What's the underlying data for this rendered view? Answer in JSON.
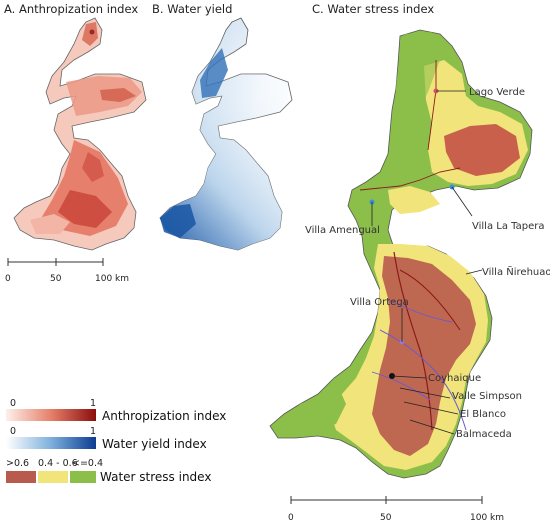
{
  "panels": {
    "a_title": "A. Anthropization index",
    "b_title": "B. Water yield",
    "c_title": "C. Water stress index"
  },
  "scale_left": {
    "ticks": [
      "0",
      "50",
      "100 km"
    ]
  },
  "scale_right": {
    "ticks": [
      "0",
      "50",
      "100 km"
    ]
  },
  "towns": [
    "Lago Verde",
    "Villa La Tapera",
    "Villa Amengual",
    "Villa Ñirehuao",
    "Villa Ortega",
    "Coyhaique",
    "Valle Simpson",
    "El Blanco",
    "Balmaceda"
  ],
  "legend": {
    "anthropization": {
      "min": "0",
      "max": "1",
      "label": "Anthropization index"
    },
    "water_yield": {
      "min": "0",
      "max": "1",
      "label": "Water yield index"
    },
    "water_stress": {
      "classes": [
        ">0.6",
        "0.4 - 0.6",
        "<=0.4"
      ],
      "label": "Water stress index",
      "colors": [
        "#b85a4e",
        "#f0e47a",
        "#8cbf4a"
      ]
    }
  },
  "colors": {
    "anthro_low": "#fbe3dc",
    "anthro_high": "#8b0d0d",
    "water_low": "#ffffff",
    "water_high": "#0b3d91",
    "stress_high": "#b85a4e",
    "stress_mid": "#f0e47a",
    "stress_low": "#8cbf4a",
    "rivers": "#6a5acd"
  }
}
